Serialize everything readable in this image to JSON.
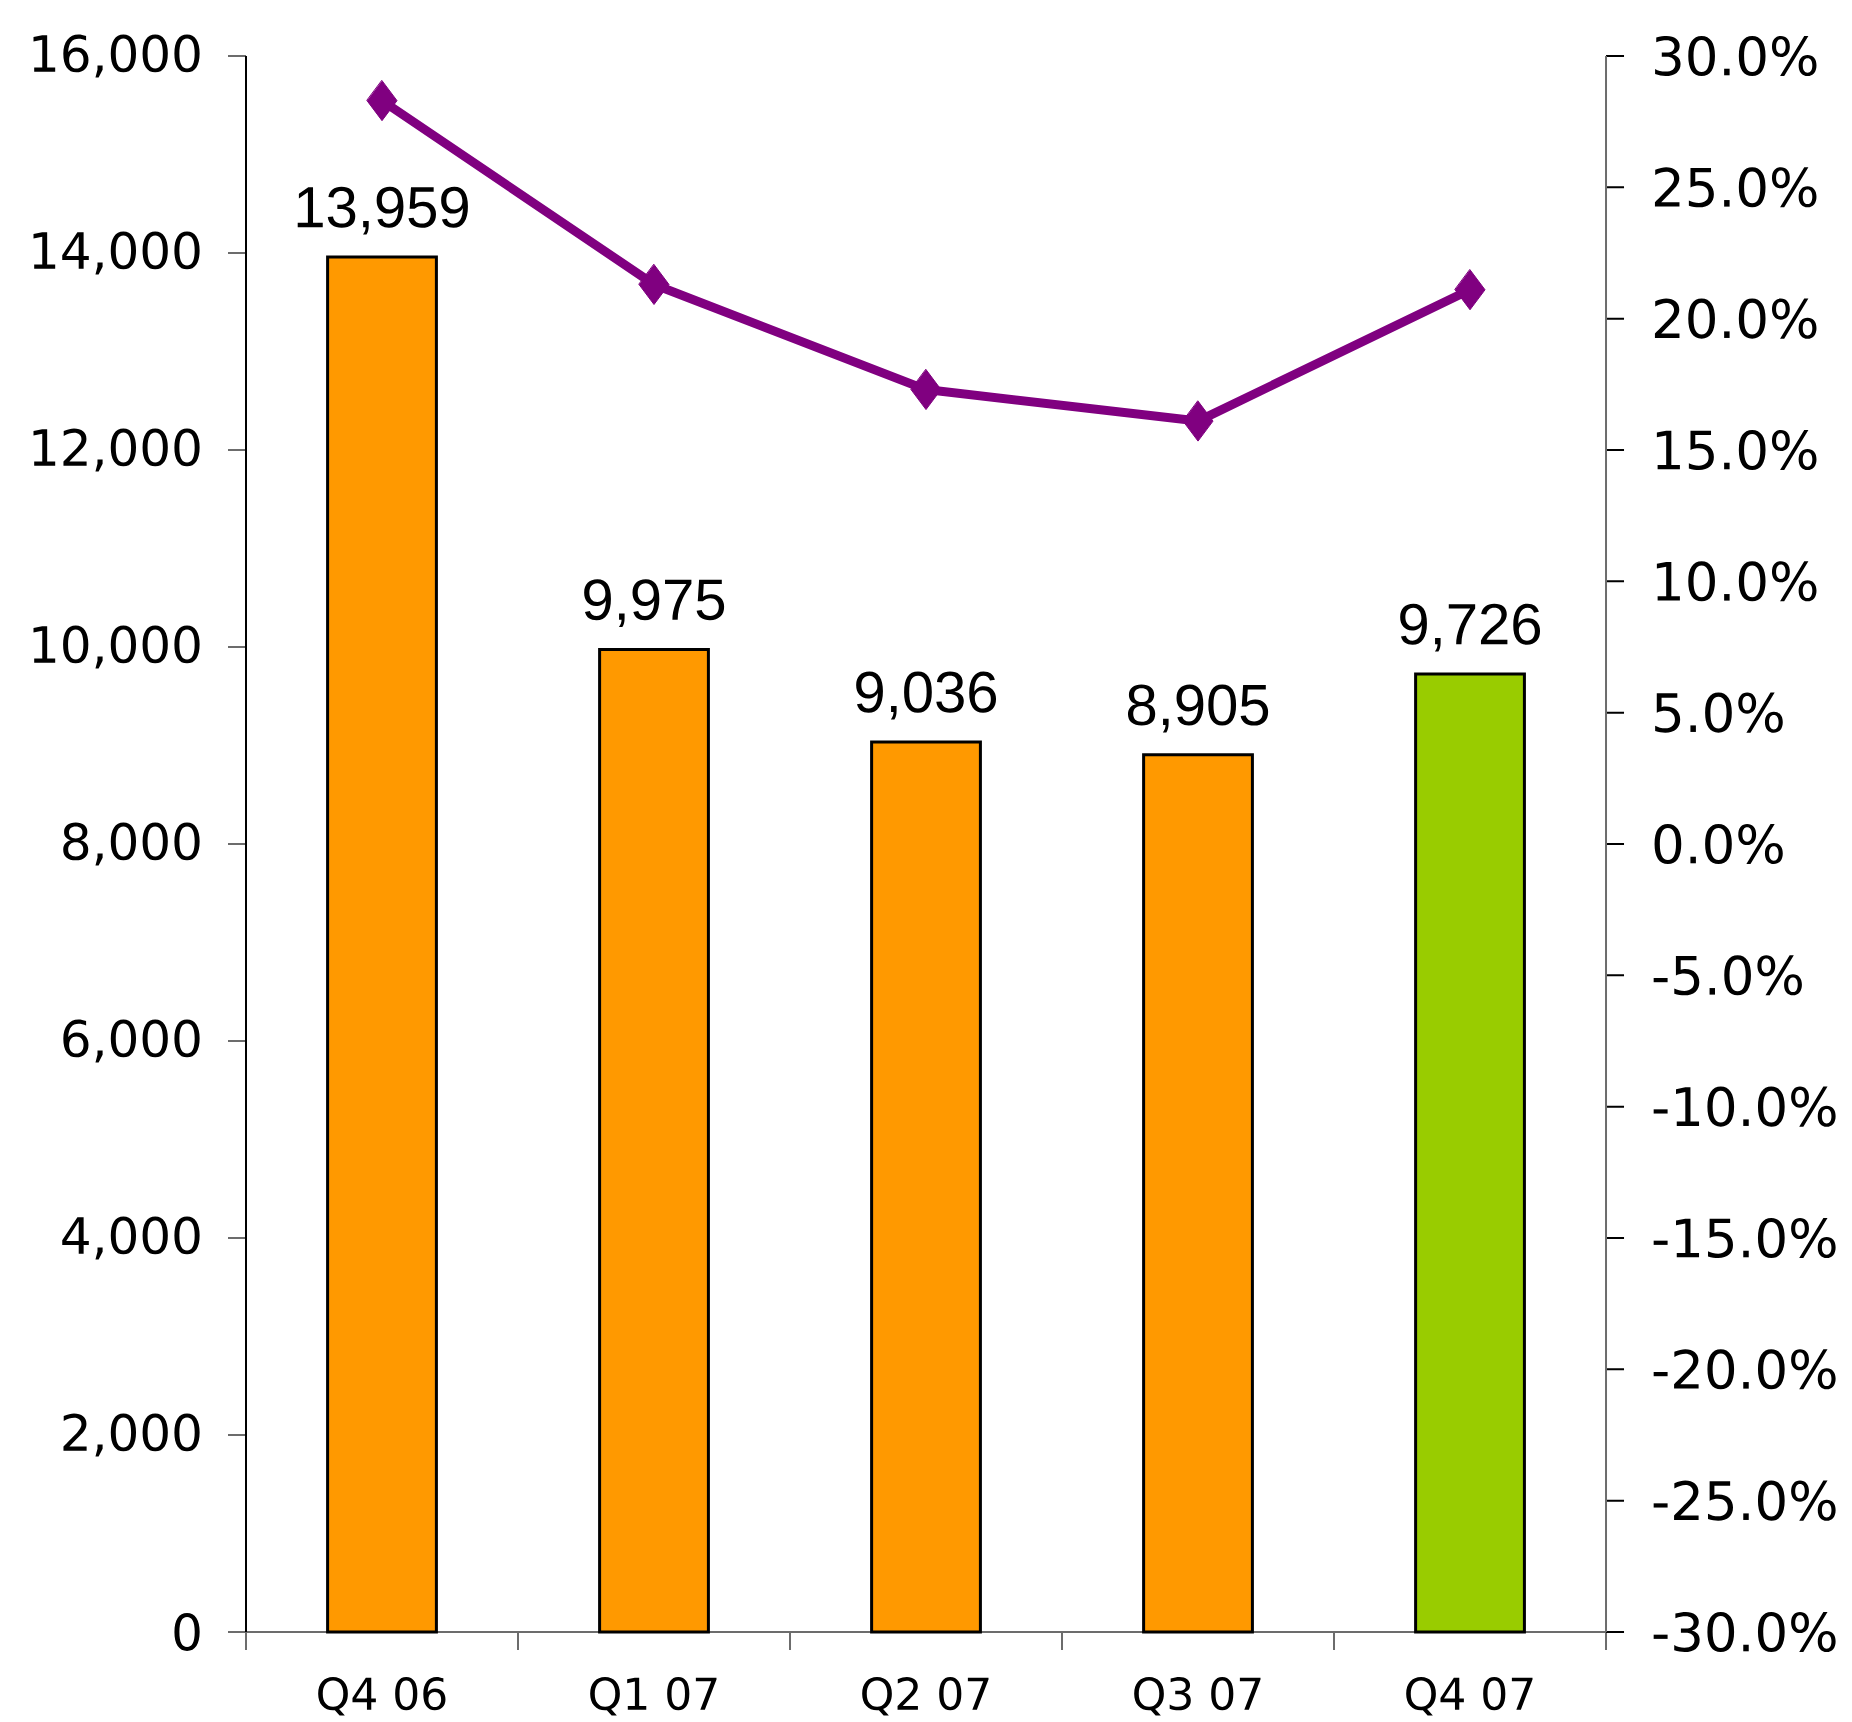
{
  "chart_data": {
    "type": "bar",
    "categories": [
      "Q4 06",
      "Q1 07",
      "Q2 07",
      "Q3 07",
      "Q4 07"
    ],
    "series": [
      {
        "values": [
          13959,
          9975,
          9036,
          8905,
          9726
        ],
        "colors": [
          "#ff9900",
          "#ff9900",
          "#ff9900",
          "#ff9900",
          "#99cc00"
        ],
        "value_labels": [
          "13,959",
          "9,975",
          "9,036",
          "8,905",
          "9,726"
        ]
      },
      {
        "type": "line",
        "axis": "y2",
        "color": "#800080",
        "marker": "diamond",
        "line_style": "solid",
        "values": [
          28.3,
          21.3,
          17.3,
          16.1,
          21.1
        ]
      }
    ],
    "ylim": [
      0,
      16000
    ],
    "yticks": [
      0,
      {
        "value": 2000,
        "label": "2,000"
      },
      {
        "value": 4000,
        "label": "4,000"
      },
      {
        "value": 6000,
        "label": "6,000"
      },
      {
        "value": 8000,
        "label": "8,000"
      },
      {
        "value": 10000,
        "label": "10,000"
      },
      {
        "value": 12000,
        "label": "12,000"
      },
      {
        "value": 14000,
        "label": "14,000"
      },
      {
        "value": 16000,
        "label": "16,000"
      }
    ],
    "y2lim": [
      -30,
      30
    ],
    "y2ticks": [
      {
        "value": -30,
        "label": "-30.0%"
      },
      {
        "value": -25,
        "label": "-25.0%"
      },
      {
        "value": -20,
        "label": "-20.0%"
      },
      {
        "value": -15,
        "label": "-15.0%"
      },
      {
        "value": -10,
        "label": "-10.0%"
      },
      {
        "value": -5,
        "label": "-5.0%"
      },
      {
        "value": 0,
        "label": "0.0%"
      },
      {
        "value": 5,
        "label": "5.0%"
      },
      {
        "value": 10,
        "label": "10.0%"
      },
      {
        "value": 15,
        "label": "15.0%"
      },
      {
        "value": 20,
        "label": "20.0%"
      },
      {
        "value": 25,
        "label": "25.0%"
      },
      {
        "value": 30,
        "label": "30.0%"
      }
    ]
  }
}
